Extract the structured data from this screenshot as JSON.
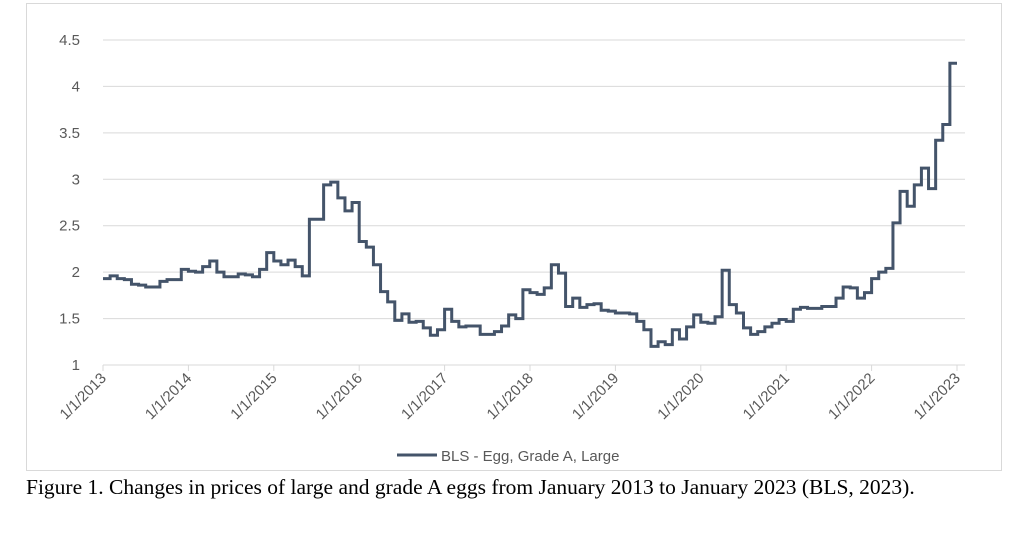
{
  "chart_data": {
    "type": "line",
    "step": true,
    "title": "",
    "xlabel": "",
    "ylabel": "",
    "ylim": [
      1,
      4.5
    ],
    "yticks": [
      "1",
      "1.5",
      "2",
      "2.5",
      "3",
      "3.5",
      "4",
      "4.5"
    ],
    "ytick_values": [
      1,
      1.5,
      2,
      2.5,
      3,
      3.5,
      4,
      4.5
    ],
    "xticks": [
      "1/1/2013",
      "1/1/2014",
      "1/1/2015",
      "1/1/2016",
      "1/1/2017",
      "1/1/2018",
      "1/1/2019",
      "1/1/2020",
      "1/1/2021",
      "1/1/2022",
      "1/1/2023"
    ],
    "xlim": [
      "2013-01",
      "2023-01"
    ],
    "grid": "horizontal",
    "legend_position": "bottom",
    "line_color": "#44546a",
    "series": [
      {
        "name": "BLS - Egg, Grade A, Large",
        "start": "2013-01",
        "frequency": "monthly",
        "values": [
          1.93,
          1.96,
          1.93,
          1.92,
          1.87,
          1.86,
          1.84,
          1.84,
          1.9,
          1.92,
          1.92,
          2.03,
          2.01,
          2.0,
          2.06,
          2.12,
          2.0,
          1.95,
          1.95,
          1.98,
          1.97,
          1.95,
          2.03,
          2.21,
          2.12,
          2.08,
          2.13,
          2.06,
          1.96,
          2.57,
          2.57,
          2.94,
          2.97,
          2.8,
          2.66,
          2.75,
          2.33,
          2.27,
          2.08,
          1.79,
          1.68,
          1.48,
          1.55,
          1.46,
          1.47,
          1.4,
          1.32,
          1.38,
          1.6,
          1.47,
          1.41,
          1.42,
          1.42,
          1.33,
          1.33,
          1.36,
          1.42,
          1.54,
          1.5,
          1.81,
          1.78,
          1.76,
          1.83,
          2.08,
          1.99,
          1.63,
          1.72,
          1.62,
          1.65,
          1.66,
          1.59,
          1.58,
          1.56,
          1.56,
          1.55,
          1.47,
          1.38,
          1.2,
          1.25,
          1.22,
          1.38,
          1.28,
          1.41,
          1.54,
          1.46,
          1.45,
          1.52,
          2.02,
          1.65,
          1.56,
          1.4,
          1.33,
          1.36,
          1.41,
          1.45,
          1.49,
          1.47,
          1.6,
          1.62,
          1.61,
          1.61,
          1.63,
          1.63,
          1.72,
          1.84,
          1.83,
          1.72,
          1.78,
          1.93,
          2.0,
          2.04,
          2.53,
          2.87,
          2.71,
          2.94,
          3.12,
          2.9,
          3.42,
          3.59,
          4.25
        ]
      }
    ]
  },
  "caption": "Figure 1. Changes in prices of large and grade A eggs from January 2013 to January 2023 (BLS, 2023)."
}
